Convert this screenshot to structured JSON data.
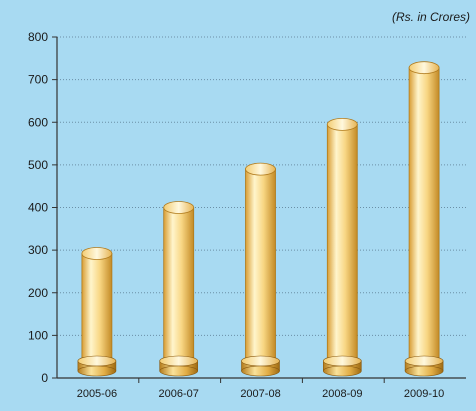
{
  "chart_data": {
    "type": "bar",
    "title": "",
    "unit_note": "(Rs. in Crores)",
    "xlabel": "",
    "ylabel": "",
    "categories": [
      "2005-06",
      "2006-07",
      "2007-08",
      "2008-09",
      "2009-10"
    ],
    "values": [
      292,
      400,
      490,
      595,
      728
    ],
    "ylim": [
      0,
      800
    ],
    "yticks": [
      0,
      100,
      200,
      300,
      400,
      500,
      600,
      700,
      800
    ],
    "grid": true,
    "legend": "none",
    "colors": {
      "background": "#a8daf2",
      "bar_light": "#fff6d2",
      "bar_mid": "#f7d27a",
      "bar_dark": "#c9932a",
      "axis": "#333333",
      "grid": "#6b8fa6"
    }
  }
}
